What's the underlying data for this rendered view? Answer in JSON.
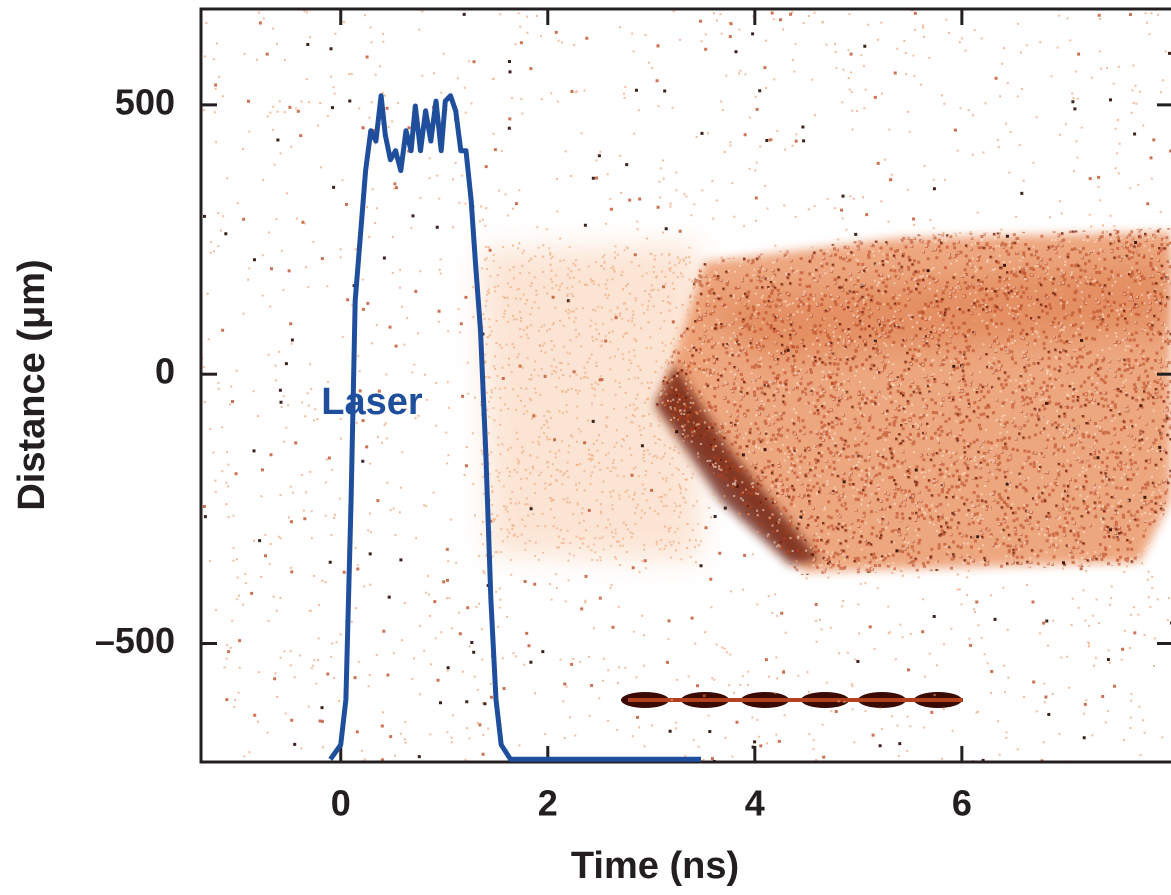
{
  "chart_data": {
    "type": "line",
    "xlabel": "Time (ns)",
    "ylabel": "Distance (μm)",
    "xlim": [
      -1.35,
      8.03
    ],
    "ylim": [
      -720,
      678
    ],
    "xticks": [
      0,
      2,
      4,
      6
    ],
    "yticks": [
      500,
      0,
      {
        "value": -500,
        "label": "–500"
      }
    ],
    "annotation": "Laser",
    "series": [
      {
        "name": "Laser",
        "color": "#1f4e9c",
        "x": [
          -0.1,
          0,
          0.05,
          0.1,
          0.14,
          0.19,
          0.24,
          0.29,
          0.34,
          0.39,
          0.43,
          0.48,
          0.53,
          0.58,
          0.63,
          0.68,
          0.72,
          0.77,
          0.82,
          0.87,
          0.92,
          0.97,
          1.01,
          1.06,
          1.11,
          1.16,
          1.21,
          1.26,
          1.3,
          1.35,
          1.4,
          1.45,
          1.5,
          1.55,
          1.64,
          3.48
        ],
        "values": [
          -715,
          -688,
          -604,
          -233,
          137,
          257,
          378,
          452,
          433,
          517,
          444,
          398,
          415,
          378,
          452,
          415,
          498,
          415,
          489,
          433,
          507,
          415,
          507,
          517,
          489,
          415,
          415,
          322,
          211,
          81,
          -141,
          -419,
          -604,
          -688,
          -715,
          -715
        ]
      }
    ]
  }
}
